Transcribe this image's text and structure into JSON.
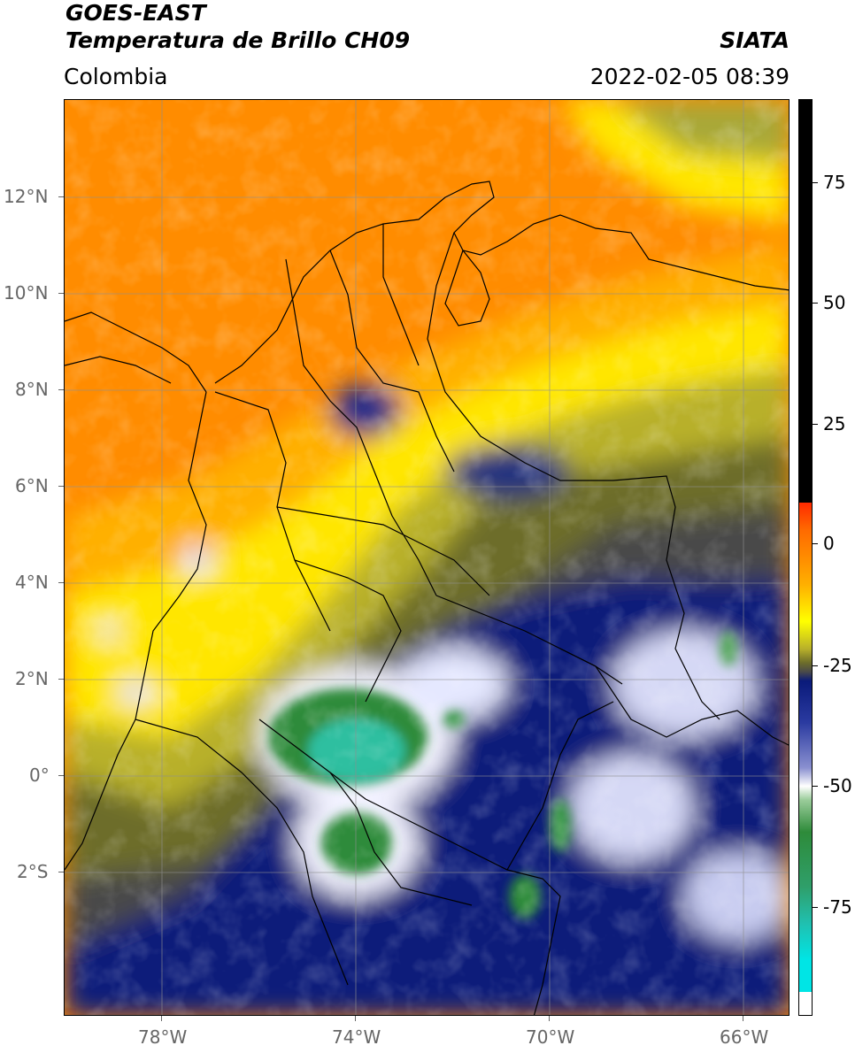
{
  "header": {
    "title_line1": "GOES-EAST",
    "title_line2": "Temperatura de Brillo CH09",
    "region": "Colombia",
    "source": "SIATA",
    "timestamp": "2022-02-05 08:39"
  },
  "map": {
    "lat_labels": [
      "12°N",
      "10°N",
      "8°N",
      "6°N",
      "4°N",
      "2°N",
      "0°",
      "2°S"
    ],
    "lon_labels": [
      "78°W",
      "74°W",
      "70°W",
      "66°W"
    ],
    "lat_range": [
      -5,
      14
    ],
    "lon_range": [
      -80,
      -65
    ]
  },
  "colorbar": {
    "units_range": [
      -95,
      90
    ],
    "tick_labels": [
      "75",
      "50",
      "25",
      "0",
      "-25",
      "-50",
      "-75"
    ],
    "colors": {
      "hot": "#000000",
      "red": "#ff2a00",
      "orange": "#ff8c00",
      "yellow": "#ffff00",
      "olive": "#6d6d2a",
      "grey": "#4a4a4a",
      "navy": "#0a1a7a",
      "white": "#ffffff",
      "green": "#2e8b3a",
      "teal": "#20c0b0",
      "cyan": "#00e5e5"
    }
  }
}
